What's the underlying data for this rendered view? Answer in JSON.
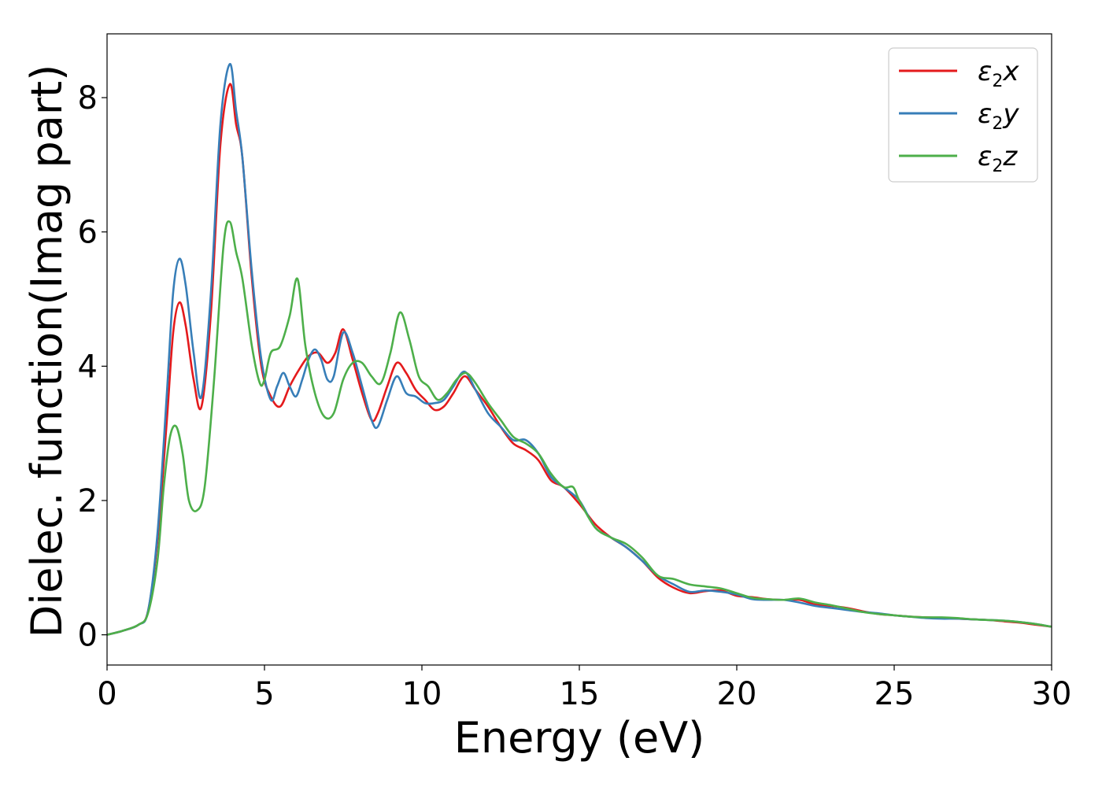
{
  "chart_data": {
    "type": "line",
    "title": "",
    "xlabel": "Energy (eV)",
    "ylabel": "Dielec. function(Imag part)",
    "xlim": [
      0,
      30
    ],
    "ylim": [
      -0.45,
      8.95
    ],
    "xticks": [
      0,
      5,
      10,
      15,
      20,
      25,
      30
    ],
    "yticks": [
      0,
      2,
      4,
      6,
      8
    ],
    "grid": false,
    "legend_position": "top-right",
    "series": [
      {
        "name": "ε2x",
        "name_base": "ε",
        "name_sub": "2",
        "name_tail": "x",
        "color": "#e41a1c",
        "x": [
          0,
          0.5,
          1.0,
          1.3,
          1.6,
          1.9,
          2.1,
          2.3,
          2.5,
          2.75,
          3.0,
          3.3,
          3.6,
          3.9,
          4.1,
          4.3,
          4.6,
          4.9,
          5.2,
          5.5,
          5.8,
          6.1,
          6.4,
          6.7,
          7.0,
          7.25,
          7.5,
          7.8,
          8.1,
          8.4,
          8.6,
          8.9,
          9.2,
          9.5,
          9.8,
          10.1,
          10.4,
          10.7,
          11.0,
          11.35,
          11.7,
          12.1,
          12.5,
          12.9,
          13.3,
          13.7,
          14.1,
          14.5,
          15.0,
          15.5,
          16.0,
          16.5,
          17.0,
          17.5,
          18.0,
          18.5,
          19.0,
          19.5,
          20.0,
          20.5,
          21.0,
          21.5,
          22.0,
          22.5,
          23.0,
          23.5,
          24.0,
          24.5,
          25.0,
          25.5,
          26.0,
          26.5,
          27.0,
          27.5,
          28.0,
          28.5,
          29.0,
          29.5,
          30.0
        ],
        "values": [
          0,
          0.06,
          0.15,
          0.35,
          1.4,
          3.2,
          4.5,
          4.95,
          4.6,
          3.8,
          3.4,
          4.8,
          7.3,
          8.2,
          7.6,
          7.1,
          5.3,
          4.0,
          3.55,
          3.4,
          3.7,
          3.95,
          4.15,
          4.2,
          4.05,
          4.2,
          4.55,
          4.1,
          3.6,
          3.2,
          3.3,
          3.7,
          4.05,
          3.9,
          3.65,
          3.5,
          3.35,
          3.4,
          3.6,
          3.85,
          3.65,
          3.4,
          3.1,
          2.85,
          2.75,
          2.6,
          2.3,
          2.2,
          1.95,
          1.65,
          1.45,
          1.3,
          1.1,
          0.85,
          0.7,
          0.62,
          0.65,
          0.66,
          0.58,
          0.56,
          0.53,
          0.52,
          0.52,
          0.45,
          0.43,
          0.4,
          0.35,
          0.31,
          0.29,
          0.27,
          0.26,
          0.25,
          0.24,
          0.23,
          0.22,
          0.2,
          0.18,
          0.15,
          0.12
        ]
      },
      {
        "name": "ε2y",
        "name_base": "ε",
        "name_sub": "2",
        "name_tail": "y",
        "color": "#377eb8",
        "x": [
          0,
          0.5,
          1.0,
          1.3,
          1.6,
          1.9,
          2.1,
          2.3,
          2.5,
          2.75,
          3.0,
          3.3,
          3.6,
          3.9,
          4.1,
          4.3,
          4.6,
          4.9,
          5.2,
          5.4,
          5.6,
          5.8,
          6.0,
          6.2,
          6.4,
          6.6,
          6.8,
          7.0,
          7.2,
          7.5,
          7.8,
          8.1,
          8.4,
          8.6,
          8.9,
          9.2,
          9.5,
          9.8,
          10.1,
          10.4,
          10.7,
          11.0,
          11.35,
          11.7,
          12.1,
          12.5,
          12.9,
          13.3,
          13.7,
          14.1,
          14.5,
          15.0,
          15.5,
          16.0,
          16.5,
          17.0,
          17.5,
          18.0,
          18.5,
          19.0,
          19.5,
          20.0,
          20.5,
          21.0,
          21.5,
          22.0,
          22.5,
          23.0,
          23.5,
          24.0,
          24.5,
          25.0,
          25.5,
          26.0,
          26.5,
          27.0,
          27.5,
          28.0,
          28.5,
          29.0,
          29.5,
          30.0
        ],
        "values": [
          0,
          0.06,
          0.15,
          0.35,
          1.5,
          3.6,
          5.1,
          5.6,
          5.2,
          4.2,
          3.55,
          5.1,
          7.6,
          8.5,
          7.8,
          7.1,
          5.4,
          4.1,
          3.5,
          3.7,
          3.9,
          3.7,
          3.55,
          3.8,
          4.1,
          4.25,
          4.1,
          3.8,
          3.85,
          4.5,
          4.2,
          3.7,
          3.2,
          3.1,
          3.5,
          3.85,
          3.6,
          3.55,
          3.45,
          3.45,
          3.5,
          3.7,
          3.92,
          3.65,
          3.3,
          3.1,
          2.9,
          2.9,
          2.7,
          2.35,
          2.2,
          2.0,
          1.6,
          1.45,
          1.3,
          1.1,
          0.88,
          0.75,
          0.64,
          0.66,
          0.64,
          0.6,
          0.53,
          0.52,
          0.52,
          0.48,
          0.43,
          0.4,
          0.37,
          0.34,
          0.32,
          0.29,
          0.27,
          0.25,
          0.24,
          0.24,
          0.23,
          0.22,
          0.21,
          0.19,
          0.16,
          0.12
        ]
      },
      {
        "name": "ε2z",
        "name_base": "ε",
        "name_sub": "2",
        "name_tail": "z",
        "color": "#4daf4a",
        "x": [
          0,
          0.5,
          1.0,
          1.3,
          1.6,
          1.8,
          2.0,
          2.2,
          2.4,
          2.6,
          2.85,
          3.1,
          3.4,
          3.7,
          3.9,
          4.1,
          4.3,
          4.6,
          4.85,
          5.0,
          5.2,
          5.5,
          5.8,
          6.05,
          6.3,
          6.6,
          6.9,
          7.2,
          7.5,
          7.8,
          8.1,
          8.4,
          8.7,
          9.0,
          9.3,
          9.6,
          9.9,
          10.2,
          10.5,
          10.8,
          11.1,
          11.4,
          11.7,
          12.1,
          12.5,
          12.9,
          13.3,
          13.7,
          14.1,
          14.5,
          14.8,
          15.0,
          15.5,
          16.0,
          16.5,
          17.0,
          17.5,
          18.0,
          18.5,
          19.0,
          19.5,
          20.0,
          20.5,
          21.0,
          21.5,
          22.0,
          22.5,
          23.0,
          23.5,
          24.0,
          24.5,
          25.0,
          25.5,
          26.0,
          26.5,
          27.0,
          27.5,
          28.0,
          28.5,
          29.0,
          29.5,
          30.0
        ],
        "values": [
          0,
          0.06,
          0.15,
          0.32,
          1.1,
          2.2,
          2.95,
          3.1,
          2.7,
          2.0,
          1.85,
          2.2,
          3.8,
          5.8,
          6.15,
          5.7,
          5.3,
          4.3,
          3.75,
          3.8,
          4.2,
          4.3,
          4.75,
          5.3,
          4.3,
          3.6,
          3.25,
          3.3,
          3.8,
          4.05,
          4.05,
          3.85,
          3.75,
          4.2,
          4.8,
          4.4,
          3.85,
          3.7,
          3.5,
          3.6,
          3.8,
          3.9,
          3.75,
          3.45,
          3.2,
          2.95,
          2.85,
          2.7,
          2.4,
          2.2,
          2.2,
          2.0,
          1.6,
          1.45,
          1.35,
          1.15,
          0.88,
          0.83,
          0.75,
          0.72,
          0.69,
          0.62,
          0.55,
          0.53,
          0.52,
          0.54,
          0.48,
          0.44,
          0.39,
          0.34,
          0.31,
          0.29,
          0.27,
          0.26,
          0.26,
          0.25,
          0.23,
          0.22,
          0.21,
          0.19,
          0.16,
          0.12
        ]
      }
    ]
  }
}
